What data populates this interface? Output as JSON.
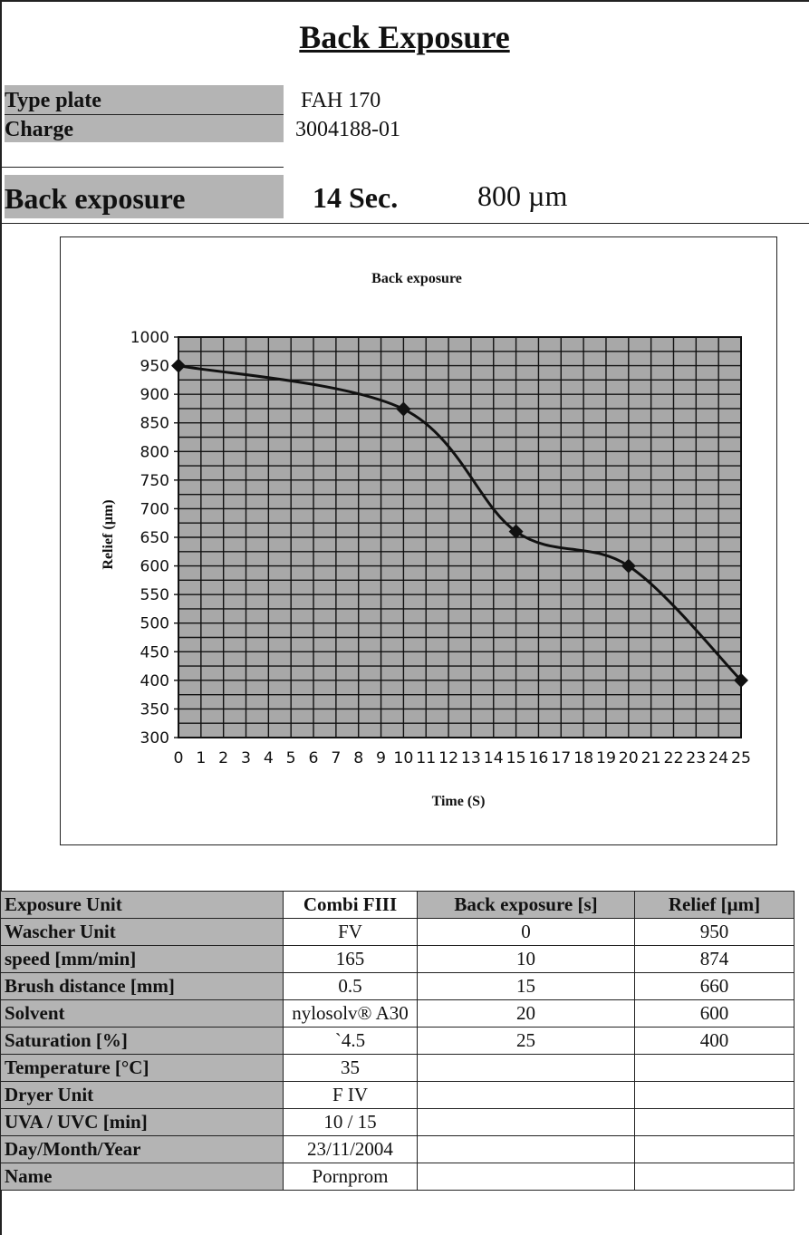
{
  "title": "Back Exposure",
  "info": {
    "type_plate_label": "Type plate",
    "type_plate_value": "FAH 170",
    "charge_label": "Charge",
    "charge_value": "3004188-01",
    "back_exposure_label": "Back exposure",
    "back_exposure_time": "14 Sec.",
    "back_exposure_relief": "800 µm"
  },
  "chart_data": {
    "type": "line",
    "title": "Back exposure",
    "xlabel": "Time (S)",
    "ylabel": "Relief (µm)",
    "xlim": [
      0,
      25
    ],
    "ylim": [
      300,
      1000
    ],
    "x_ticks": [
      0,
      1,
      2,
      3,
      4,
      5,
      6,
      7,
      8,
      9,
      10,
      11,
      12,
      13,
      14,
      15,
      16,
      17,
      18,
      19,
      20,
      21,
      22,
      23,
      24,
      25
    ],
    "y_ticks": [
      300,
      350,
      400,
      450,
      500,
      550,
      600,
      650,
      700,
      750,
      800,
      850,
      900,
      950,
      1000
    ],
    "grid": true,
    "x": [
      0,
      10,
      15,
      20,
      25
    ],
    "y": [
      950,
      874,
      660,
      600,
      400
    ],
    "colors": {
      "plot_bg": "#a8a8a8",
      "line": "#111111"
    }
  },
  "table": {
    "rows": [
      [
        "Exposure Unit",
        "Combi FIII",
        "Back exposure [s]",
        "Relief [µm]"
      ],
      [
        "Wascher Unit",
        "FV",
        "0",
        "950"
      ],
      [
        "speed [mm/min]",
        "165",
        "10",
        "874"
      ],
      [
        "Brush distance [mm]",
        "0.5",
        "15",
        "660"
      ],
      [
        "Solvent",
        "nylosolv® A30",
        "20",
        "600"
      ],
      [
        "Saturation [%]",
        "`4.5",
        "25",
        "400"
      ],
      [
        "Temperature [°C]",
        "35",
        "",
        ""
      ],
      [
        "Dryer Unit",
        "F IV",
        "",
        ""
      ],
      [
        "UVA / UVC [min]",
        "10 / 15",
        "",
        ""
      ],
      [
        "Day/Month/Year",
        "23/11/2004",
        "",
        ""
      ],
      [
        "Name",
        "Pornprom",
        "",
        ""
      ]
    ]
  }
}
